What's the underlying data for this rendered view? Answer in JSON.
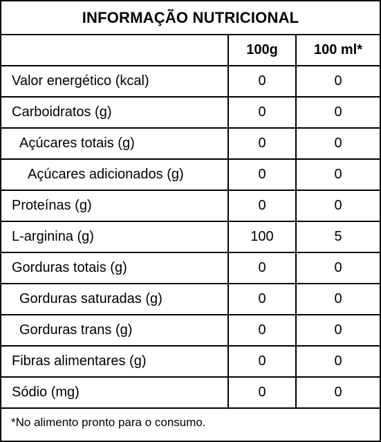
{
  "title": "INFORMAÇÃO NUTRICIONAL",
  "columns": [
    "",
    "100g",
    "100 ml*"
  ],
  "rows": [
    {
      "label": "Valor energético (kcal)",
      "indent": 0,
      "v100g": "0",
      "v100ml": "0"
    },
    {
      "label": "Carboidratos (g)",
      "indent": 0,
      "v100g": "0",
      "v100ml": "0"
    },
    {
      "label": "Açúcares totais (g)",
      "indent": 1,
      "v100g": "0",
      "v100ml": "0"
    },
    {
      "label": "Açúcares adicionados (g)",
      "indent": 2,
      "v100g": "0",
      "v100ml": "0"
    },
    {
      "label": "Proteínas (g)",
      "indent": 0,
      "v100g": "0",
      "v100ml": "0"
    },
    {
      "label": "L-arginina (g)",
      "indent": 0,
      "v100g": "100",
      "v100ml": "5"
    },
    {
      "label": "Gorduras totais (g)",
      "indent": 0,
      "v100g": "0",
      "v100ml": "0"
    },
    {
      "label": "Gorduras saturadas (g)",
      "indent": 1,
      "v100g": "0",
      "v100ml": "0"
    },
    {
      "label": "Gorduras trans (g)",
      "indent": 1,
      "v100g": "0",
      "v100ml": "0"
    },
    {
      "label": "Fibras alimentares (g)",
      "indent": 0,
      "v100g": "0",
      "v100ml": "0"
    },
    {
      "label": "Sódio (mg)",
      "indent": 0,
      "v100g": "0",
      "v100ml": "0"
    }
  ],
  "footnote": "*No alimento pronto para o consumo."
}
